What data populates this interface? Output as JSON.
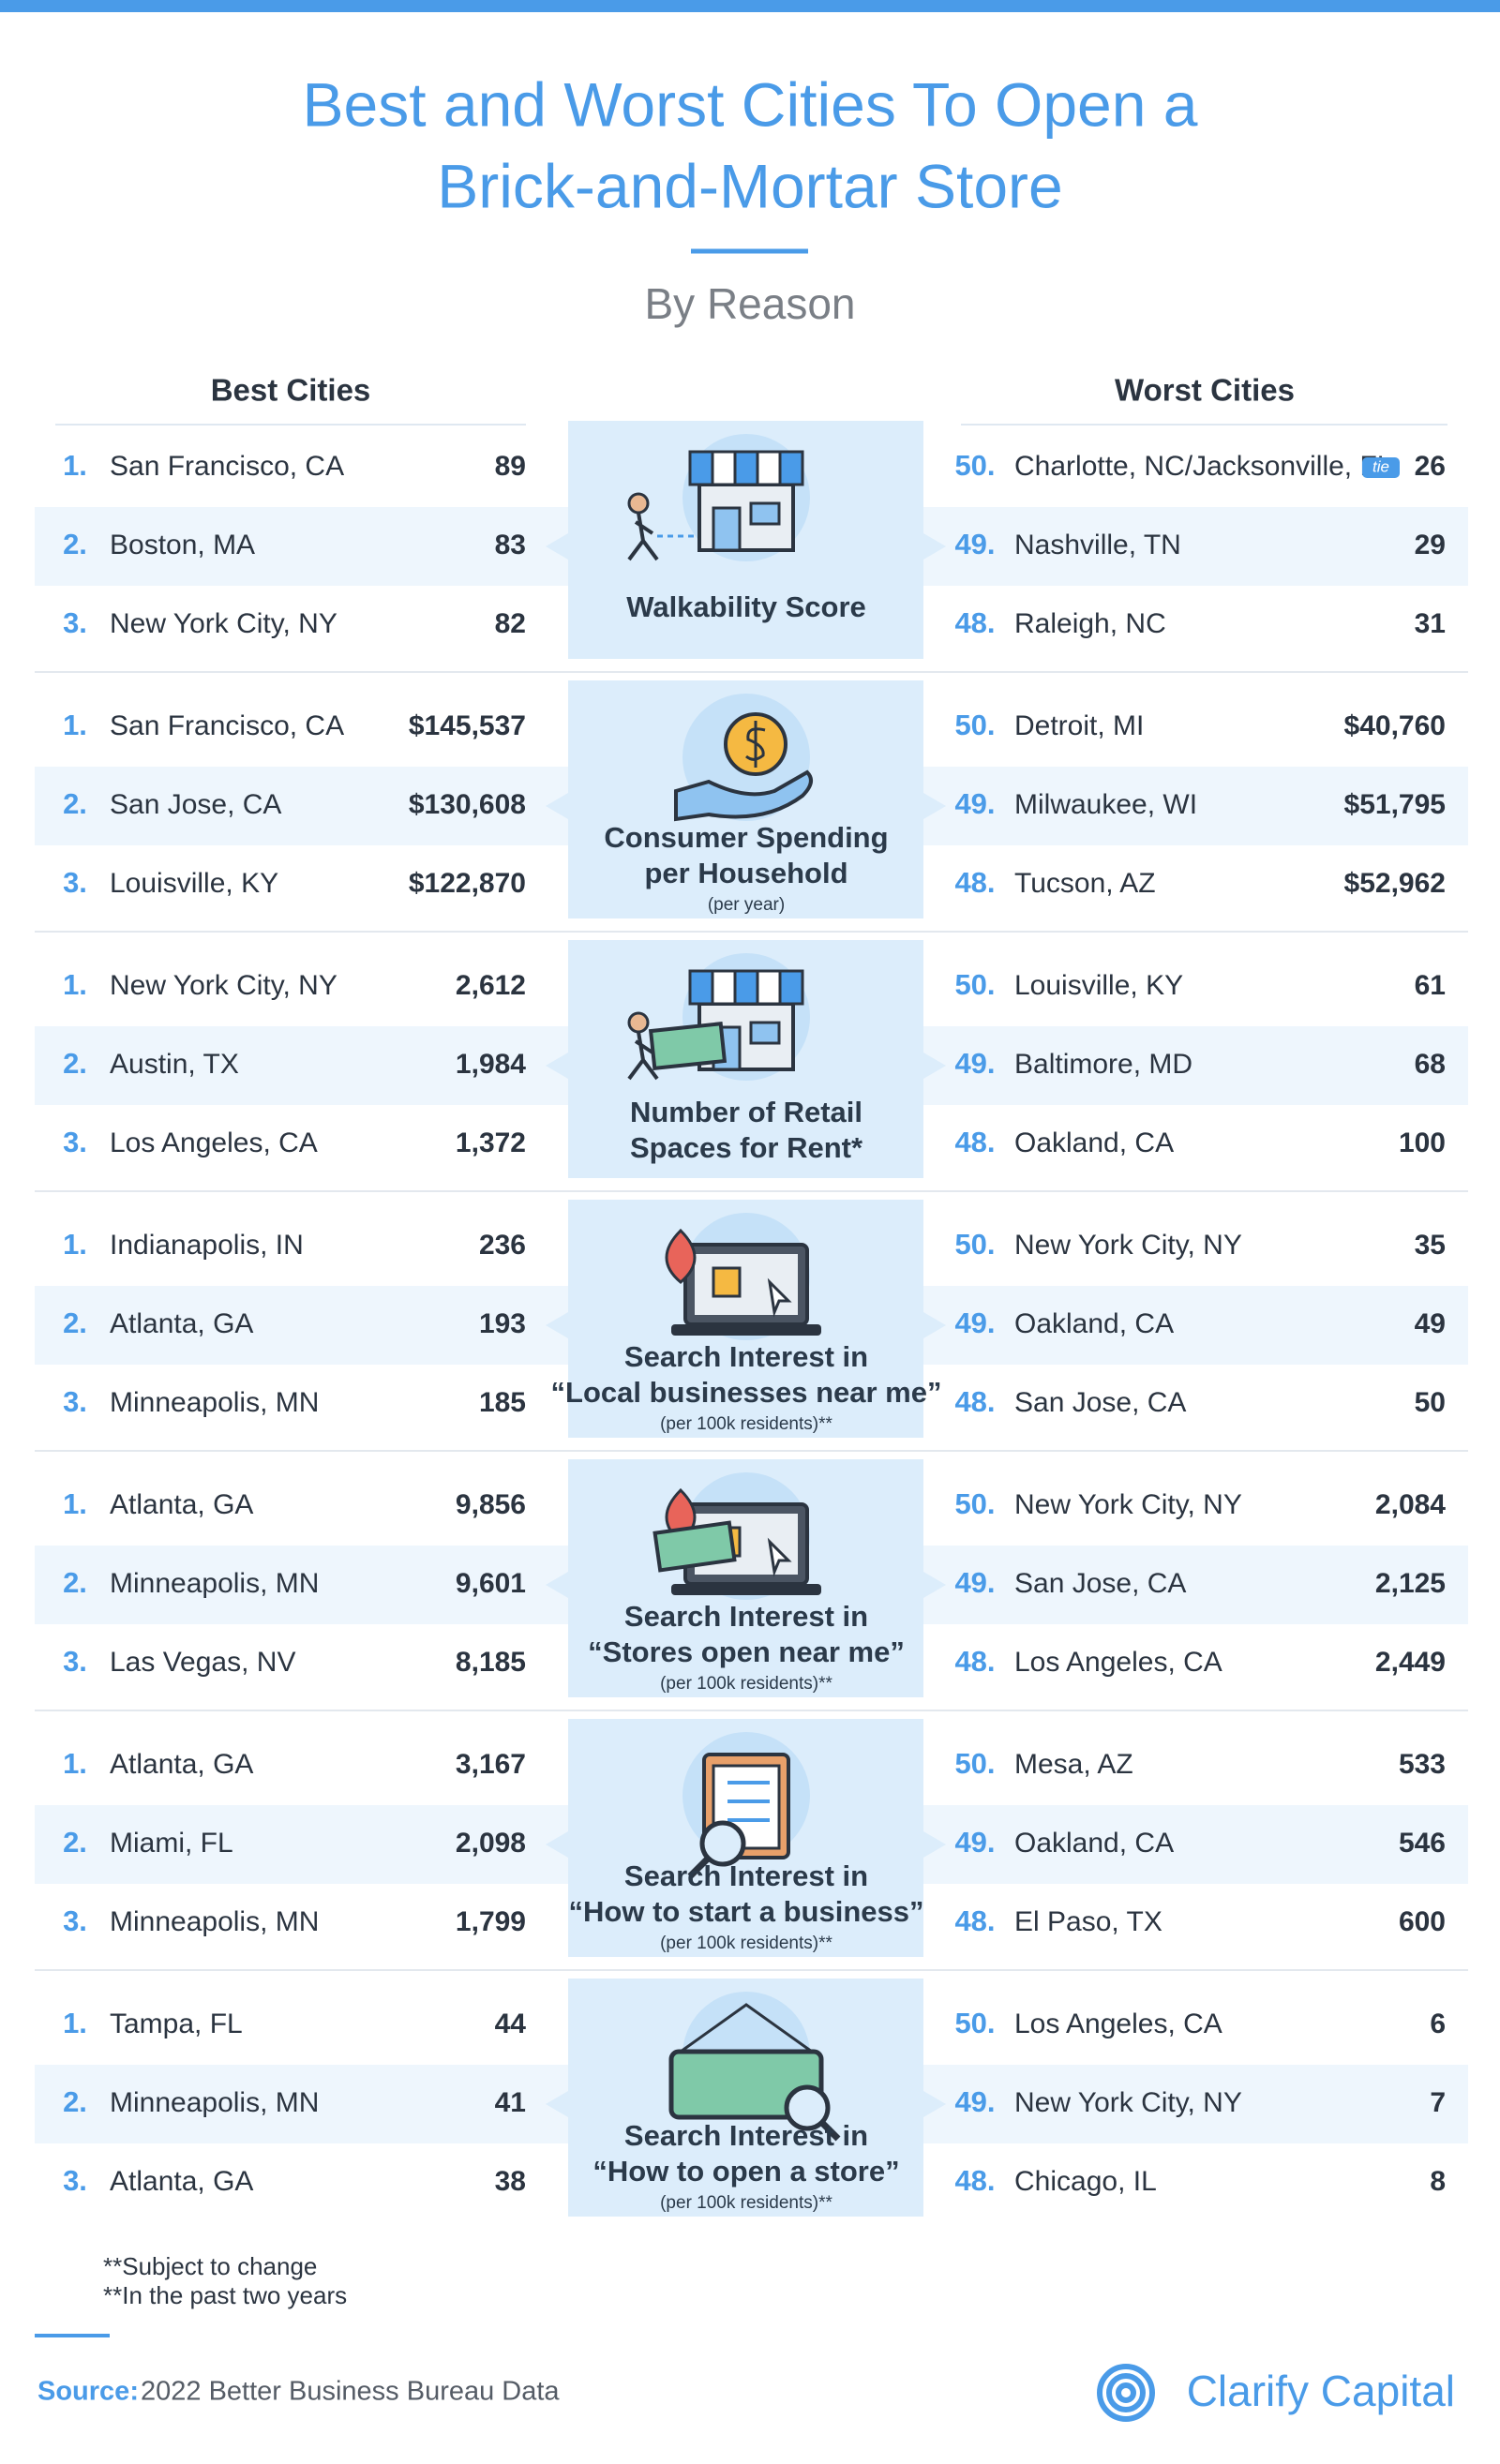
{
  "header": {
    "title_lines": [
      "Best and Worst Cities To Open a",
      "Brick-and-Mortar Store"
    ],
    "subtitle": "By Reason"
  },
  "columns": {
    "best": "Best Cities",
    "worst": "Worst Cities"
  },
  "sections": [
    {
      "icon": "store",
      "label_lines": [
        "Walkability Score"
      ],
      "best": [
        {
          "rank": "1.",
          "city": "San Francisco, CA",
          "value": "89"
        },
        {
          "rank": "2.",
          "city": "Boston, MA",
          "value": "83"
        },
        {
          "rank": "3.",
          "city": "New York City, NY",
          "value": "82"
        }
      ],
      "worst": [
        {
          "rank": "50.",
          "city": "Charlotte, NC/Jacksonville, FL",
          "tie": "tie",
          "value": "26"
        },
        {
          "rank": "49.",
          "city": "Nashville, TN",
          "value": "29"
        },
        {
          "rank": "48.",
          "city": "Raleigh, NC",
          "value": "31"
        }
      ]
    },
    {
      "icon": "coin",
      "label_lines": [
        "Consumer Spending",
        "per Household"
      ],
      "note": "(per year)",
      "best": [
        {
          "rank": "1.",
          "city": "San Francisco, CA",
          "value": "$145,537"
        },
        {
          "rank": "2.",
          "city": "San Jose, CA",
          "value": "$130,608"
        },
        {
          "rank": "3.",
          "city": "Louisville, KY",
          "value": "$122,870"
        }
      ],
      "worst": [
        {
          "rank": "50.",
          "city": "Detroit, MI",
          "value": "$40,760"
        },
        {
          "rank": "49.",
          "city": "Milwaukee, WI",
          "value": "$51,795"
        },
        {
          "rank": "48.",
          "city": "Tucson, AZ",
          "value": "$52,962"
        }
      ]
    },
    {
      "icon": "rent",
      "label_lines": [
        "Number of Retail",
        "Spaces for Rent*"
      ],
      "best": [
        {
          "rank": "1.",
          "city": "New York City, NY",
          "value": "2,612"
        },
        {
          "rank": "2.",
          "city": "Austin, TX",
          "value": "1,984"
        },
        {
          "rank": "3.",
          "city": "Los Angeles, CA",
          "value": "1,372"
        }
      ],
      "worst": [
        {
          "rank": "50.",
          "city": "Louisville, KY",
          "value": "61"
        },
        {
          "rank": "49.",
          "city": "Baltimore, MD",
          "value": "68"
        },
        {
          "rank": "48.",
          "city": "Oakland, CA",
          "value": "100"
        }
      ]
    },
    {
      "icon": "laptop",
      "label_lines": [
        "Search Interest in",
        "“Local businesses near me”"
      ],
      "note": "(per 100k residents)**",
      "best": [
        {
          "rank": "1.",
          "city": "Indianapolis, IN",
          "value": "236"
        },
        {
          "rank": "2.",
          "city": "Atlanta, GA",
          "value": "193"
        },
        {
          "rank": "3.",
          "city": "Minneapolis, MN",
          "value": "185"
        }
      ],
      "worst": [
        {
          "rank": "50.",
          "city": "New York City, NY",
          "value": "35"
        },
        {
          "rank": "49.",
          "city": "Oakland, CA",
          "value": "49"
        },
        {
          "rank": "48.",
          "city": "San Jose, CA",
          "value": "50"
        }
      ]
    },
    {
      "icon": "laptop-open",
      "label_lines": [
        "Search Interest in",
        "“Stores open near me”"
      ],
      "note": "(per 100k residents)**",
      "best": [
        {
          "rank": "1.",
          "city": "Atlanta, GA",
          "value": "9,856"
        },
        {
          "rank": "2.",
          "city": "Minneapolis, MN",
          "value": "9,601"
        },
        {
          "rank": "3.",
          "city": "Las Vegas, NV",
          "value": "8,185"
        }
      ],
      "worst": [
        {
          "rank": "50.",
          "city": "New York City, NY",
          "value": "2,084"
        },
        {
          "rank": "49.",
          "city": "San Jose, CA",
          "value": "2,125"
        },
        {
          "rank": "48.",
          "city": "Los Angeles, CA",
          "value": "2,449"
        }
      ]
    },
    {
      "icon": "clipboard",
      "label_lines": [
        "Search Interest in",
        "“How to start a business”"
      ],
      "note": "(per 100k residents)**",
      "best": [
        {
          "rank": "1.",
          "city": "Atlanta, GA",
          "value": "3,167"
        },
        {
          "rank": "2.",
          "city": "Miami, FL",
          "value": "2,098"
        },
        {
          "rank": "3.",
          "city": "Minneapolis, MN",
          "value": "1,799"
        }
      ],
      "worst": [
        {
          "rank": "50.",
          "city": "Mesa, AZ",
          "value": "533"
        },
        {
          "rank": "49.",
          "city": "Oakland, CA",
          "value": "546"
        },
        {
          "rank": "48.",
          "city": "El Paso, TX",
          "value": "600"
        }
      ]
    },
    {
      "icon": "sign",
      "label_lines": [
        "Search Interest in",
        "“How to open a store”"
      ],
      "note": "(per 100k residents)**",
      "best": [
        {
          "rank": "1.",
          "city": "Tampa, FL",
          "value": "44"
        },
        {
          "rank": "2.",
          "city": "Minneapolis, MN",
          "value": "41"
        },
        {
          "rank": "3.",
          "city": "Atlanta, GA",
          "value": "38"
        }
      ],
      "worst": [
        {
          "rank": "50.",
          "city": "Los Angeles, CA",
          "value": "6"
        },
        {
          "rank": "49.",
          "city": "New York City, NY",
          "value": "7"
        },
        {
          "rank": "48.",
          "city": "Chicago, IL",
          "value": "8"
        }
      ]
    }
  ],
  "footnotes": [
    "**Subject to change",
    "**In the past two years"
  ],
  "footer": {
    "source_label": "Source:",
    "source": "2022 Better Business Bureau Data",
    "brand": "Clarify Capital"
  }
}
